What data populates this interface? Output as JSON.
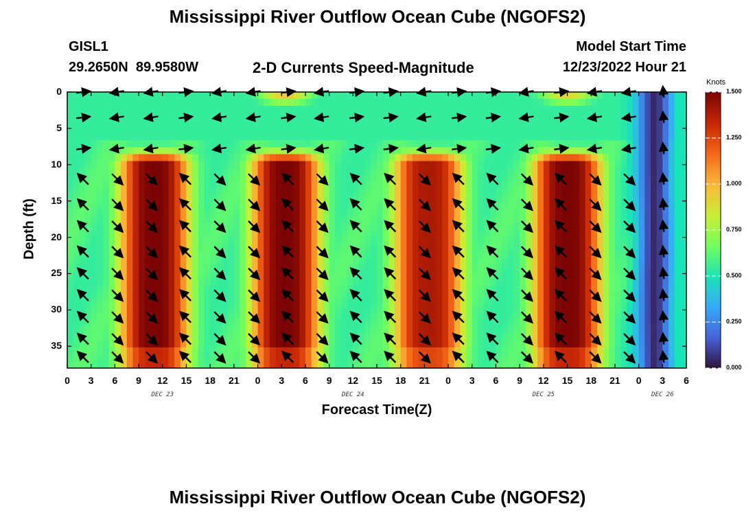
{
  "page": {
    "title_top": "Mississippi River Outflow Ocean Cube (NGOFS2)",
    "title_bottom": "Mississippi River Outflow Ocean Cube (NGOFS2)"
  },
  "header": {
    "station_id": "GISL1",
    "station_coords": "29.2650N  89.9580W",
    "plot_subtitle": "2-D Currents Speed-Magnitude",
    "model_label": "Model Start Time",
    "model_value": "12/23/2022 Hour 21"
  },
  "chart_data": {
    "type": "heatmap",
    "title": "2-D Currents Speed-Magnitude",
    "xlabel": "Forecast Time(Z)",
    "ylabel": "Depth (ft)",
    "x_tick_labels": [
      "0",
      "3",
      "6",
      "9",
      "12",
      "15",
      "18",
      "21",
      "0",
      "3",
      "6",
      "9",
      "12",
      "15",
      "18",
      "21",
      "0",
      "3",
      "6",
      "9",
      "12",
      "15",
      "18",
      "21",
      "0",
      "3",
      "6"
    ],
    "x_range_hours": [
      0,
      78
    ],
    "day_labels": [
      {
        "label": "DEC 23",
        "hour": 12
      },
      {
        "label": "DEC 24",
        "hour": 36
      },
      {
        "label": "DEC 25",
        "hour": 60
      },
      {
        "label": "DEC 26",
        "hour": 75
      }
    ],
    "y_ticks": [
      0,
      5,
      10,
      15,
      20,
      25,
      30,
      35
    ],
    "y_range_ft": [
      0,
      38
    ],
    "colorbar": {
      "label": "Knots",
      "range": [
        0,
        1.5
      ],
      "ticks": [
        "0.000",
        "0.250",
        "0.500",
        "0.750",
        "1.000",
        "1.250",
        "1.500"
      ]
    },
    "speed_peaks": [
      {
        "center_hour": 11,
        "peak_knots": 1.5
      },
      {
        "center_hour": 27.5,
        "peak_knots": 1.5
      },
      {
        "center_hour": 45.5,
        "peak_knots": 1.4
      },
      {
        "center_hour": 63,
        "peak_knots": 1.5
      }
    ],
    "surface_peaks": [
      {
        "center_hour": 27.5,
        "peak_knots": 1.0
      },
      {
        "center_hour": 63,
        "peak_knots": 0.95
      }
    ],
    "minimum_hour": 74,
    "colors": {
      "jet": [
        "#30123b",
        "#4662d7",
        "#36aaf9",
        "#1ae4b6",
        "#72fe5e",
        "#c8ef34",
        "#faba39",
        "#f66b19",
        "#ca2a04",
        "#7a0403"
      ]
    }
  }
}
